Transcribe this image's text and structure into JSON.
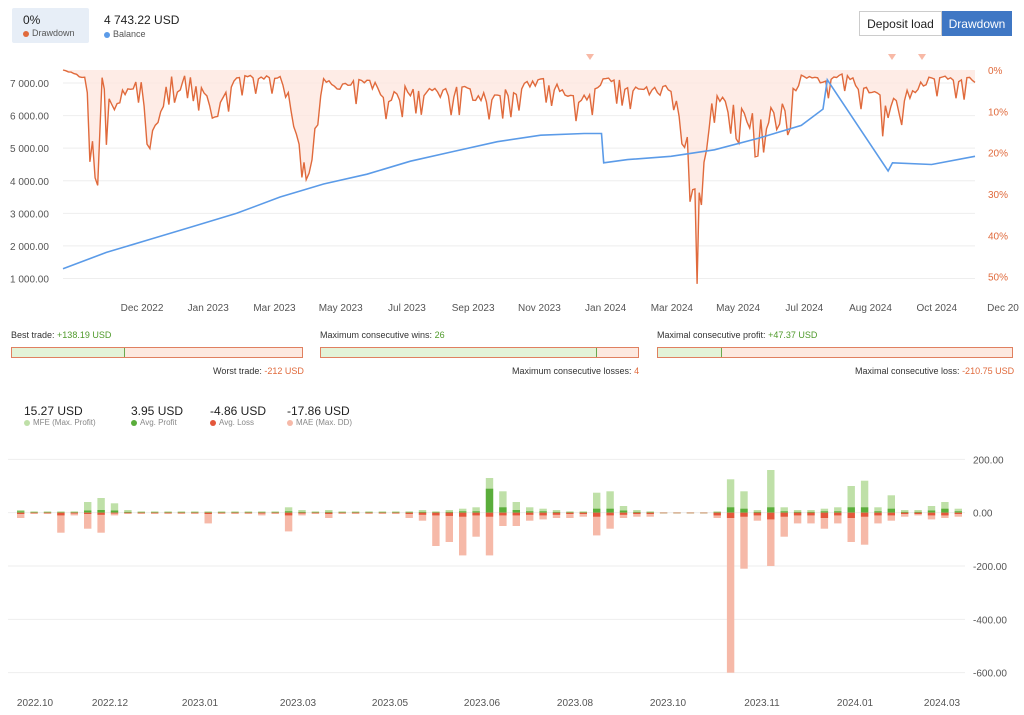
{
  "header": {
    "drawdown_value": "0%",
    "drawdown_label": "Drawdown",
    "balance_value": "4 743.22 USD",
    "balance_label": "Balance",
    "btn_deposit": "Deposit load",
    "btn_drawdown": "Drawdown"
  },
  "colors": {
    "drawdown": "#e06a3c",
    "balance": "#5b9be8",
    "mfe": "#bfe0a8",
    "profit": "#5aad3b",
    "loss": "#e4573b",
    "mae": "#f6b9a8",
    "active": "#3f77c4"
  },
  "chart_data": [
    {
      "type": "line",
      "title": "",
      "x_ticks": [
        "Dec 2022",
        "Jan 2023",
        "Mar 2023",
        "May 2023",
        "Jul 2023",
        "Sep 2023",
        "Nov 2023",
        "Jan 2024",
        "Mar 2024",
        "May 2024",
        "Jul 2024",
        "Aug 2024",
        "Oct 2024",
        "Dec 20"
      ],
      "y_left_ticks": [
        "7 000.00",
        "6 000.00",
        "5 000.00",
        "4 000.00",
        "3 000.00",
        "2 000.00",
        "1 000.00"
      ],
      "y_right_ticks": [
        "0%",
        "10%",
        "20%",
        "30%",
        "40%",
        "50%"
      ],
      "ylim_left": [
        800,
        7400
      ],
      "ylim_right": [
        0,
        52
      ],
      "series": [
        {
          "name": "Balance",
          "x": [
            0,
            10,
            20,
            30,
            40,
            50,
            55,
            60,
            70,
            80,
            90,
            100,
            110,
            120,
            124,
            124.5,
            130,
            140,
            150,
            160,
            170,
            175,
            176,
            190,
            191,
            200,
            210
          ],
          "y": [
            1300,
            1800,
            2200,
            2600,
            3000,
            3500,
            3700,
            3900,
            4200,
            4600,
            4900,
            5200,
            5400,
            5450,
            5450,
            4550,
            4650,
            4750,
            4950,
            5300,
            5700,
            6200,
            7100,
            4300,
            4550,
            4500,
            4750
          ]
        },
        {
          "name": "Drawdown",
          "x": [
            0,
            5,
            8,
            9,
            10,
            18,
            20,
            25,
            27,
            28,
            30,
            35,
            40,
            50,
            55,
            56,
            58,
            60,
            65,
            70,
            75,
            80,
            90,
            100,
            110,
            120,
            125,
            130,
            140,
            145,
            146,
            147,
            150,
            160,
            162,
            163,
            165,
            170,
            175,
            180,
            190,
            200,
            210
          ],
          "y": [
            0,
            2,
            35,
            2,
            12,
            3,
            18,
            2,
            8,
            2,
            3,
            12,
            2,
            2,
            20,
            30,
            18,
            3,
            5,
            3,
            8,
            6,
            6,
            8,
            3,
            8,
            2,
            5,
            6,
            28,
            47,
            25,
            8,
            15,
            22,
            10,
            15,
            2,
            3,
            1,
            12,
            2,
            3
          ]
        }
      ]
    },
    {
      "type": "bar",
      "title": "",
      "x_ticks": [
        "2022.10",
        "2022.12",
        "2023.01",
        "2023.03",
        "2023.05",
        "2023.06",
        "2023.08",
        "2023.10",
        "2023.11",
        "2024.01",
        "2024.03"
      ],
      "y_ticks": [
        "200.00",
        "0.00",
        "-200.00",
        "-400.00",
        "-600.00"
      ],
      "ylim": [
        -620,
        220
      ],
      "series": [
        {
          "name": "MFE (Max. Profit)",
          "values": [
            10,
            5,
            5,
            5,
            5,
            40,
            55,
            35,
            10,
            5,
            5,
            5,
            5,
            5,
            5,
            5,
            5,
            5,
            5,
            5,
            20,
            10,
            5,
            10,
            5,
            5,
            5,
            5,
            5,
            5,
            10,
            5,
            10,
            15,
            20,
            130,
            80,
            40,
            20,
            15,
            10,
            5,
            5,
            75,
            80,
            25,
            10,
            5,
            0,
            0,
            0,
            0,
            5,
            125,
            80,
            10,
            160,
            20,
            10,
            10,
            15,
            20,
            100,
            120,
            20,
            65,
            10,
            10,
            25,
            40,
            15
          ]
        },
        {
          "name": "Avg. Profit",
          "values": [
            5,
            2,
            2,
            2,
            2,
            8,
            10,
            8,
            3,
            2,
            2,
            2,
            2,
            2,
            2,
            2,
            2,
            2,
            2,
            2,
            5,
            3,
            2,
            3,
            2,
            2,
            2,
            2,
            2,
            2,
            3,
            2,
            3,
            5,
            5,
            90,
            20,
            10,
            5,
            5,
            3,
            2,
            2,
            15,
            15,
            8,
            3,
            2,
            0,
            0,
            0,
            0,
            2,
            20,
            15,
            3,
            20,
            5,
            3,
            3,
            5,
            5,
            20,
            20,
            5,
            15,
            3,
            3,
            8,
            15,
            5
          ]
        },
        {
          "name": "Avg. Loss",
          "values": [
            -5,
            -2,
            -2,
            -10,
            -3,
            -5,
            -8,
            -3,
            -2,
            -2,
            -2,
            -2,
            -2,
            -2,
            -5,
            -2,
            -2,
            -2,
            -3,
            -2,
            -10,
            -3,
            -2,
            -5,
            -2,
            -2,
            -2,
            -2,
            -2,
            -5,
            -8,
            -10,
            -12,
            -15,
            -10,
            -15,
            -10,
            -10,
            -8,
            -10,
            -8,
            -5,
            -5,
            -15,
            -10,
            -8,
            -5,
            -5,
            0,
            0,
            0,
            0,
            -10,
            -20,
            -15,
            -10,
            -25,
            -15,
            -10,
            -10,
            -20,
            -10,
            -20,
            -15,
            -10,
            -10,
            -5,
            -5,
            -10,
            -10,
            -5
          ]
        },
        {
          "name": "MAE (Max. DD)",
          "values": [
            -20,
            -5,
            -5,
            -75,
            -10,
            -60,
            -75,
            -10,
            -5,
            -5,
            -5,
            -5,
            -5,
            -5,
            -40,
            -5,
            -5,
            -5,
            -10,
            -5,
            -70,
            -10,
            -5,
            -20,
            -5,
            -5,
            -5,
            -5,
            -5,
            -20,
            -30,
            -125,
            -110,
            -160,
            -90,
            -160,
            -50,
            -50,
            -30,
            -25,
            -20,
            -20,
            -15,
            -85,
            -60,
            -20,
            -15,
            -15,
            0,
            0,
            0,
            0,
            -20,
            -600,
            -210,
            -30,
            -200,
            -90,
            -40,
            -40,
            -60,
            -40,
            -110,
            -120,
            -40,
            -30,
            -15,
            -10,
            -25,
            -20,
            -15
          ]
        }
      ]
    }
  ],
  "stats": {
    "best_trade_label": "Best trade:",
    "best_trade_value": "+138.19 USD",
    "best_trade_fraction": 0.39,
    "worst_trade_label": "Worst trade:",
    "worst_trade_value": "-212 USD",
    "max_consec_wins_label": "Maximum consecutive wins:",
    "max_consec_wins_value": "26",
    "max_consec_wins_fraction": 0.87,
    "max_consec_losses_label": "Maximum consecutive losses:",
    "max_consec_losses_value": "4",
    "max_consec_profit_label": "Maximal consecutive profit:",
    "max_consec_profit_value": "+47.37 USD",
    "max_consec_profit_fraction": 0.18,
    "max_consec_loss_label": "Maximal consecutive loss:",
    "max_consec_loss_value": "-210.75 USD"
  },
  "legend": {
    "mfe_value": "15.27 USD",
    "mfe_label": "MFE (Max. Profit)",
    "profit_value": "3.95 USD",
    "profit_label": "Avg. Profit",
    "loss_value": "-4.86 USD",
    "loss_label": "Avg. Loss",
    "mae_value": "-17.86 USD",
    "mae_label": "MAE (Max. DD)"
  }
}
